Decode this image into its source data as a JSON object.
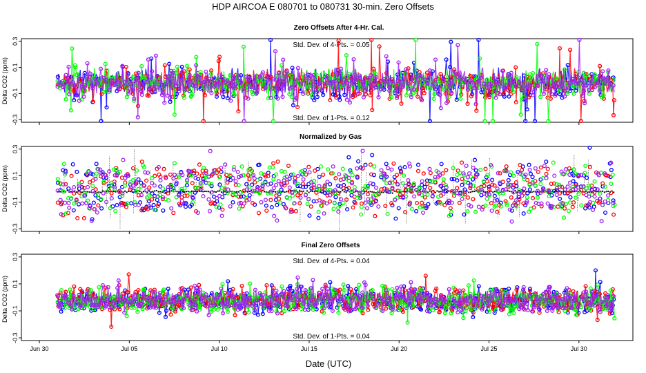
{
  "figure": {
    "title": "HDP    AIRCOA E    080701 to 080731    30-min. Zero Offsets",
    "xlabel": "Date (UTC)"
  },
  "colors": {
    "blue": "#0000ff",
    "red": "#ff0000",
    "green": "#00ff00",
    "purple": "#a020f0",
    "black": "#000000"
  },
  "chart_data": [
    {
      "type": "scatter",
      "title": "Zero Offsets After 4-Hr. Cal.",
      "ylabel": "Delta CO2 (ppm)",
      "xlim": [
        "2008-06-29",
        "2008-08-02"
      ],
      "ylim": [
        -0.32,
        0.32
      ],
      "yticks": [
        -0.3,
        -0.1,
        0.1,
        0.3
      ],
      "yticklabels": [
        "-0.3",
        "-0.1",
        "0.1",
        "0.3"
      ],
      "annotation_top": "Std. Dev. of 4-Pts. = 0.05",
      "annotation_bottom": "Std. Dev. of 1-Pts. = 0.12",
      "series_colors": [
        "blue",
        "red",
        "green",
        "purple"
      ],
      "data_start": "2008-07-01",
      "data_end": "2008-07-31",
      "spread_sd": 0.05,
      "spike_sd": 0.12
    },
    {
      "type": "scatter",
      "title": "Normalized by Gas",
      "ylabel": "Delta CO2 (ppm)",
      "xlim": [
        "2008-06-29",
        "2008-08-02"
      ],
      "ylim": [
        -0.32,
        0.32
      ],
      "yticks": [
        -0.3,
        -0.1,
        0.1,
        0.3
      ],
      "yticklabels": [
        "-0.3",
        "-0.1",
        "0.1",
        "0.3"
      ],
      "annotation_top": "",
      "annotation_bottom": "",
      "series_colors": [
        "blue",
        "red",
        "green",
        "purple"
      ],
      "data_start": "2008-07-01",
      "data_end": "2008-07-31",
      "spread_sd": 0.08,
      "spike_sd": 0.12
    },
    {
      "type": "scatter",
      "title": "Final Zero Offsets",
      "ylabel": "Delta CO2 (ppm)",
      "xlim": [
        "2008-06-29",
        "2008-08-02"
      ],
      "ylim": [
        -0.32,
        0.32
      ],
      "yticks": [
        -0.3,
        -0.1,
        0.1,
        0.3
      ],
      "yticklabels": [
        "-0.3",
        "-0.1",
        "0.1",
        "0.3"
      ],
      "annotation_top": "Std. Dev. of 4-Pts. = 0.04",
      "annotation_bottom": "Std. Dev. of 1-Pts. = 0.04",
      "series_colors": [
        "blue",
        "red",
        "green",
        "purple"
      ],
      "data_start": "2008-07-01",
      "data_end": "2008-07-31",
      "spread_sd": 0.04,
      "spike_sd": 0.04
    }
  ],
  "xaxis": {
    "ticks": [
      "2008-06-30",
      "2008-07-05",
      "2008-07-10",
      "2008-07-15",
      "2008-07-20",
      "2008-07-25",
      "2008-07-30"
    ],
    "ticklabels": [
      "Jun 30",
      "Jul 05",
      "Jul 10",
      "Jul 15",
      "Jul 20",
      "Jul 25",
      "Jul 30"
    ]
  }
}
